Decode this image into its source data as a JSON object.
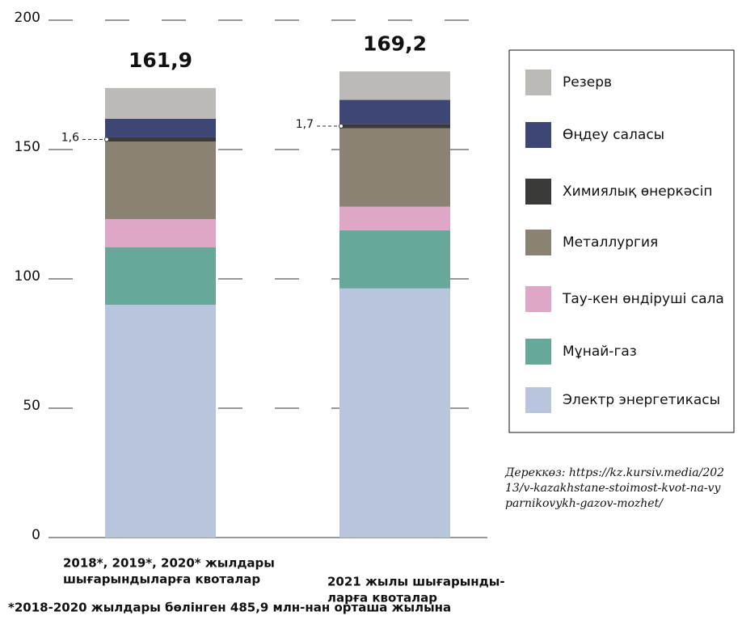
{
  "chart_data": {
    "type": "stacked_bar",
    "categories": [
      [
        "2018*, 2019*, 2020* жылдары",
        "шығарындыларға квоталар"
      ],
      [
        "2021 жылы шығарынды-",
        "ларға квоталар"
      ]
    ],
    "series": [
      {
        "name": "Электр энергетикасы",
        "color": "#b8c5dc",
        "values": [
          90,
          96.3
        ]
      },
      {
        "name": "Мұнай-газ",
        "color": "#68a89b",
        "values": [
          22.2,
          22.5
        ]
      },
      {
        "name": "Тау-кен өндіруші сала",
        "color": "#dda7c5",
        "values": [
          10.9,
          9.1
        ]
      },
      {
        "name": "Металлургия",
        "color": "#8a8374",
        "values": [
          30,
          30.3
        ]
      },
      {
        "name": "Химиялық өнеркәсіп",
        "color": "#3a3a38",
        "values": [
          1.6,
          1.7
        ],
        "value_labels": [
          "1,6",
          "1,7"
        ]
      },
      {
        "name": "Өңдеу саласы",
        "color": "#3e4676",
        "values": [
          7.2,
          9.3
        ]
      },
      {
        "name": "Резерв",
        "color": "#bbbab6",
        "values": [
          11.9,
          11
        ]
      }
    ],
    "annotations": [
      "161,9",
      "169,2"
    ],
    "source": [
      "Дереккөз: https://kz.kursiv.media/202",
      "13/v-kazakhstane-stoimost-kvot-na-vy",
      "parnikovykh-gazov-mozhet/"
    ],
    "footnote": "*2018-2020 жылдары бөлінген 485,9 млн-нан орташа жылына",
    "ylim": [
      0,
      200
    ],
    "yticks": [
      0,
      50,
      100,
      150,
      200
    ],
    "grid": true,
    "legend": "right"
  }
}
